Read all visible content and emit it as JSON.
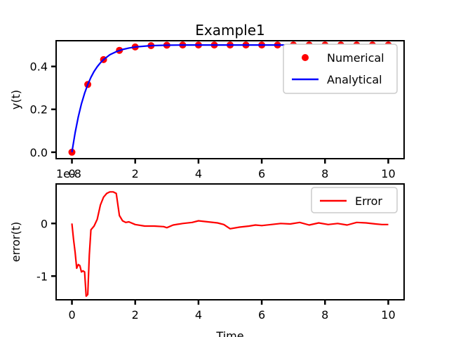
{
  "chart_data": [
    {
      "type": "line",
      "title": "Example1",
      "xlabel": "",
      "ylabel": "y(t)",
      "offset_text": "1e-8",
      "xlim": [
        -0.5,
        10.5
      ],
      "ylim": [
        -0.03,
        0.52
      ],
      "xticks": [
        {
          "value": 0,
          "label": "0"
        },
        {
          "value": 2,
          "label": "2"
        },
        {
          "value": 4,
          "label": "4"
        },
        {
          "value": 6,
          "label": "6"
        },
        {
          "value": 8,
          "label": "8"
        },
        {
          "value": 10,
          "label": "10"
        }
      ],
      "yticks": [
        {
          "value": 0.0,
          "label": "0.0"
        },
        {
          "value": 0.2,
          "label": "0.2"
        },
        {
          "value": 0.4,
          "label": "0.4"
        }
      ],
      "legend": "top-right",
      "grid": false,
      "series": [
        {
          "name": "Numerical",
          "kind": "scatter",
          "color": "#ff0000",
          "x": [
            0,
            0.5,
            1,
            1.5,
            2,
            2.5,
            3,
            3.5,
            4,
            4.5,
            5,
            5.5,
            6,
            6.5,
            7,
            7.5,
            8,
            8.5,
            9,
            9.5,
            10
          ],
          "y": [
            0.0,
            0.316,
            0.432,
            0.475,
            0.491,
            0.497,
            0.499,
            0.5,
            0.5,
            0.5,
            0.5,
            0.5,
            0.5,
            0.5,
            0.5,
            0.5,
            0.5,
            0.5,
            0.5,
            0.5,
            0.5
          ]
        },
        {
          "name": "Analytical",
          "kind": "line",
          "color": "#0000ff",
          "x": [
            0,
            0.1,
            0.2,
            0.3,
            0.4,
            0.5,
            0.6,
            0.7,
            0.8,
            0.9,
            1.0,
            1.2,
            1.4,
            1.6,
            1.8,
            2.0,
            2.5,
            3,
            3.5,
            4,
            4.5,
            5,
            5.5,
            6,
            6.5,
            7,
            7.5,
            8,
            8.5,
            9,
            9.5,
            10
          ],
          "y": [
            0.0,
            0.091,
            0.165,
            0.226,
            0.275,
            0.316,
            0.349,
            0.377,
            0.399,
            0.417,
            0.432,
            0.455,
            0.469,
            0.479,
            0.486,
            0.491,
            0.497,
            0.499,
            0.5,
            0.5,
            0.5,
            0.5,
            0.5,
            0.5,
            0.5,
            0.5,
            0.5,
            0.5,
            0.5,
            0.5,
            0.5,
            0.5
          ]
        }
      ]
    },
    {
      "type": "line",
      "title": "",
      "xlabel": "Time",
      "ylabel": "error(t)",
      "xlim": [
        -0.5,
        10.5
      ],
      "ylim": [
        -1.45,
        0.75
      ],
      "xticks": [
        {
          "value": 0,
          "label": "0"
        },
        {
          "value": 2,
          "label": "2"
        },
        {
          "value": 4,
          "label": "4"
        },
        {
          "value": 6,
          "label": "6"
        },
        {
          "value": 8,
          "label": "8"
        },
        {
          "value": 10,
          "label": "10"
        }
      ],
      "yticks": [
        {
          "value": 0,
          "label": "0"
        },
        {
          "value": -1,
          "label": "-1"
        }
      ],
      "legend": "top-right",
      "grid": false,
      "series": [
        {
          "name": "Error",
          "kind": "line",
          "color": "#ff0000",
          "x": [
            0.0,
            0.05,
            0.1,
            0.15,
            0.2,
            0.25,
            0.3,
            0.35,
            0.4,
            0.45,
            0.5,
            0.55,
            0.6,
            0.7,
            0.8,
            0.9,
            1.0,
            1.1,
            1.2,
            1.3,
            1.4,
            1.5,
            1.6,
            1.7,
            1.8,
            2.0,
            2.3,
            2.6,
            2.9,
            3.0,
            3.2,
            3.5,
            3.8,
            4.0,
            4.3,
            4.6,
            4.8,
            5.0,
            5.3,
            5.6,
            5.8,
            6.0,
            6.3,
            6.6,
            6.9,
            7.2,
            7.5,
            7.8,
            8.1,
            8.4,
            8.7,
            9.0,
            9.3,
            9.6,
            9.8,
            10.0
          ],
          "y": [
            0.0,
            -0.3,
            -0.55,
            -0.85,
            -0.78,
            -0.8,
            -0.92,
            -0.9,
            -0.92,
            -1.38,
            -1.35,
            -0.6,
            -0.12,
            -0.05,
            0.08,
            0.35,
            0.5,
            0.57,
            0.6,
            0.6,
            0.57,
            0.15,
            0.05,
            0.02,
            0.03,
            -0.02,
            -0.05,
            -0.05,
            -0.06,
            -0.08,
            -0.03,
            0.0,
            0.02,
            0.05,
            0.03,
            0.01,
            -0.02,
            -0.1,
            -0.07,
            -0.05,
            -0.03,
            -0.04,
            -0.02,
            0.0,
            -0.01,
            0.02,
            -0.03,
            0.01,
            -0.02,
            0.0,
            -0.03,
            0.02,
            0.01,
            -0.01,
            -0.02,
            -0.02
          ]
        }
      ]
    }
  ]
}
